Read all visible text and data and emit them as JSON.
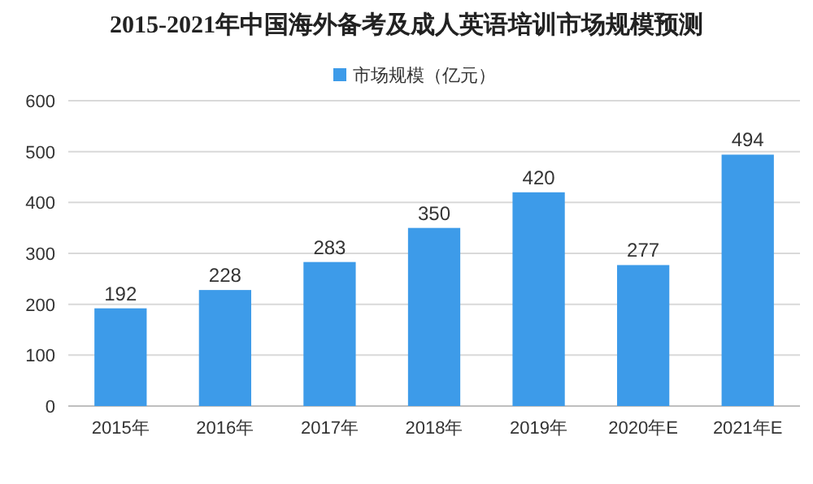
{
  "chart_data": {
    "type": "bar",
    "title": "2015-2021年中国海外备考及成人英语培训市场规模预测",
    "categories": [
      "2015年",
      "2016年",
      "2017年",
      "2018年",
      "2019年",
      "2020年E",
      "2021年E"
    ],
    "series": [
      {
        "name": "市场规模（亿元）",
        "color": "#3d9be9",
        "values": [
          192,
          228,
          283,
          350,
          420,
          277,
          494
        ]
      }
    ],
    "ylim": [
      0,
      600
    ],
    "yticks": [
      0,
      100,
      200,
      300,
      400,
      500,
      600
    ],
    "grid": "y",
    "legend": "top",
    "data_labels": true
  }
}
